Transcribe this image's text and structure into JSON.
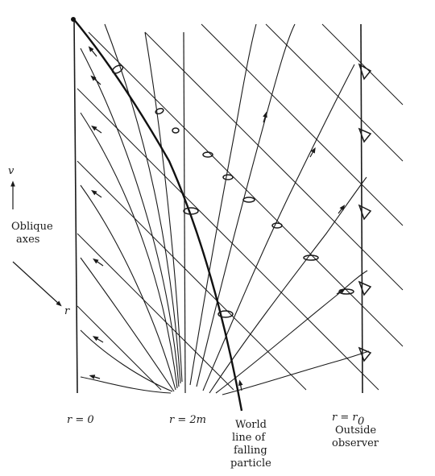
{
  "labels": {
    "axis_v": "v",
    "axis_r": "r",
    "oblique_1": "Oblique",
    "oblique_2": "axes",
    "r0_left": "r = 0",
    "r2m": "r = 2m",
    "world_1": "World",
    "world_2": "line of",
    "world_3": "falling",
    "world_4": "particle",
    "rr0": "r = r",
    "rr0_sub": "0",
    "outside_1": "Outside",
    "outside_2": "observer"
  }
}
